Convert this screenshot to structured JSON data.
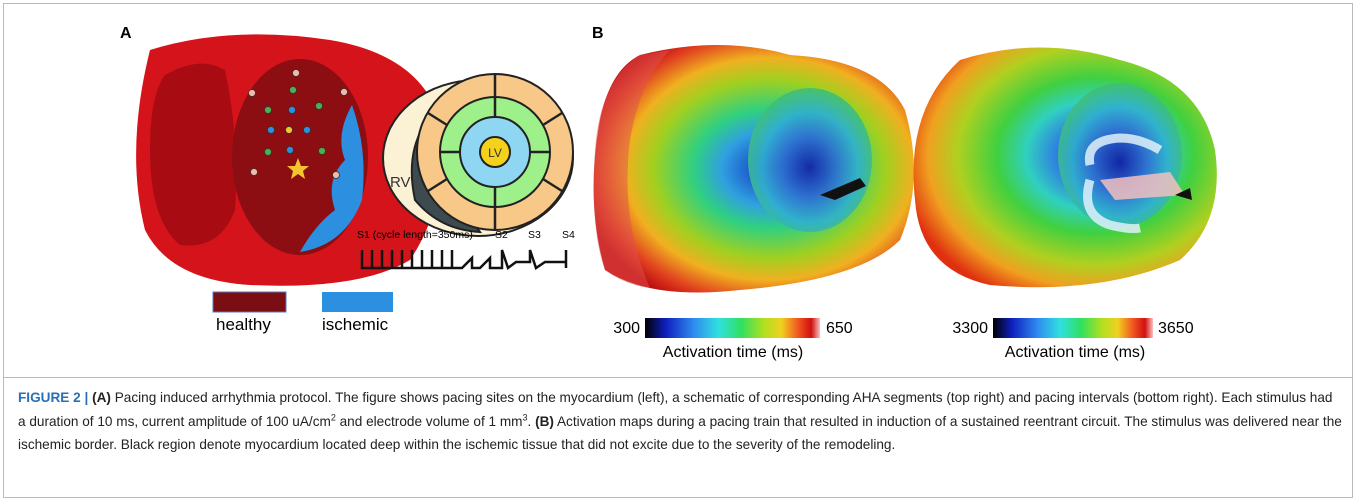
{
  "panel_a": {
    "label": "A",
    "rv": "RV",
    "lv": "LV",
    "s1": "S1 (cycle length=350ms)",
    "s2": "S2",
    "s3": "S3",
    "s4": "S4",
    "legend": [
      "healthy",
      "ischemic"
    ]
  },
  "panel_b": {
    "label": "B",
    "maps": [
      {
        "min": 300,
        "max": 650,
        "axis_label": "Activation time (ms)"
      },
      {
        "min": 3300,
        "max": 3650,
        "axis_label": "Activation time (ms)"
      }
    ]
  },
  "caption": {
    "figure_label": "FIGURE 2 |",
    "a_marker": "(A)",
    "a_text": "Pacing induced arrhythmia protocol.  The figure shows pacing sites on the myocardium (left), a schematic of corresponding AHA segments (top right) and pacing intervals (bottom right). Each stimulus had a duration of 10 ms, current amplitude of 100 uA/cm",
    "sup_1": "2",
    "a_text_2": "and electrode volume of 1 mm",
    "sup_2": "3",
    "a_text_3": ".",
    "b_marker": "(B)",
    "b_text": "Activation maps during a pacing train that resulted in induction of a sustained reentrant circuit. The stimulus was delivered near the ischemic border. Black region denote myocardium located deep within the ischemic tissue that did not excite due to the severity of the remodeling."
  }
}
